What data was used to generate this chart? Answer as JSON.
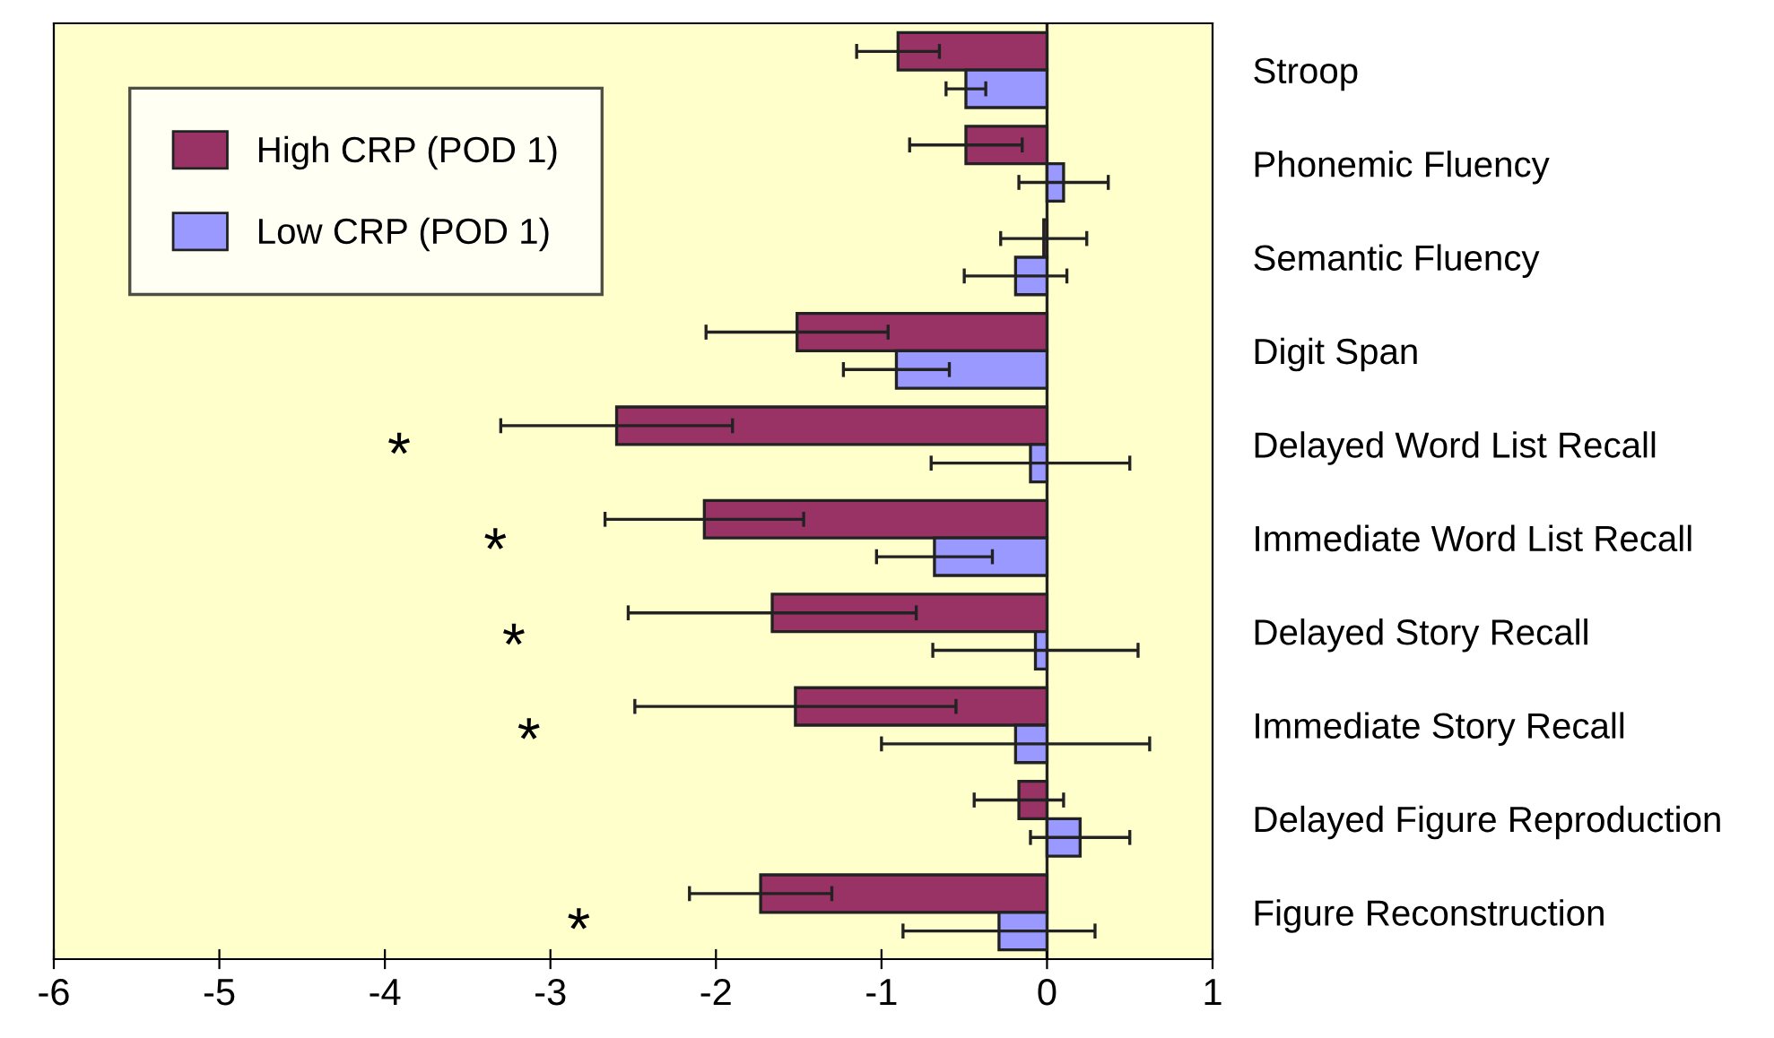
{
  "chart_data": {
    "type": "bar",
    "orientation": "horizontal",
    "categories": [
      "Stroop",
      "Phonemic Fluency",
      "Semantic Fluency",
      "Digit Span",
      "Delayed Word List Recall",
      "Immediate Word List Recall",
      "Delayed Story Recall",
      "Immediate Story Recall",
      "Delayed Figure Reproduction",
      "Figure Reconstruction"
    ],
    "series": [
      {
        "name": "High CRP (POD 1)",
        "color": "#993366",
        "values": [
          -0.9,
          -0.49,
          -0.02,
          -1.51,
          -2.6,
          -2.07,
          -1.66,
          -1.52,
          -0.17,
          -1.73
        ],
        "errors": [
          0.25,
          0.34,
          0.26,
          0.55,
          0.7,
          0.6,
          0.87,
          0.97,
          0.27,
          0.43
        ]
      },
      {
        "name": "Low CRP (POD 1)",
        "color": "#9999ff",
        "values": [
          -0.49,
          0.1,
          -0.19,
          -0.91,
          -0.1,
          -0.68,
          -0.07,
          -0.19,
          0.2,
          -0.29
        ],
        "errors": [
          0.12,
          0.27,
          0.31,
          0.32,
          0.6,
          0.35,
          0.62,
          0.81,
          0.3,
          0.58
        ]
      }
    ],
    "xlim": [
      -6,
      1
    ],
    "xticks": [
      -6,
      -5,
      -4,
      -3,
      -2,
      -1,
      0,
      1
    ],
    "ref_lines": [
      {
        "axis": "x",
        "value": 0
      }
    ],
    "annotations": [
      "*",
      "*",
      "*",
      "*",
      "*"
    ],
    "legend": "top left",
    "grid": false
  }
}
